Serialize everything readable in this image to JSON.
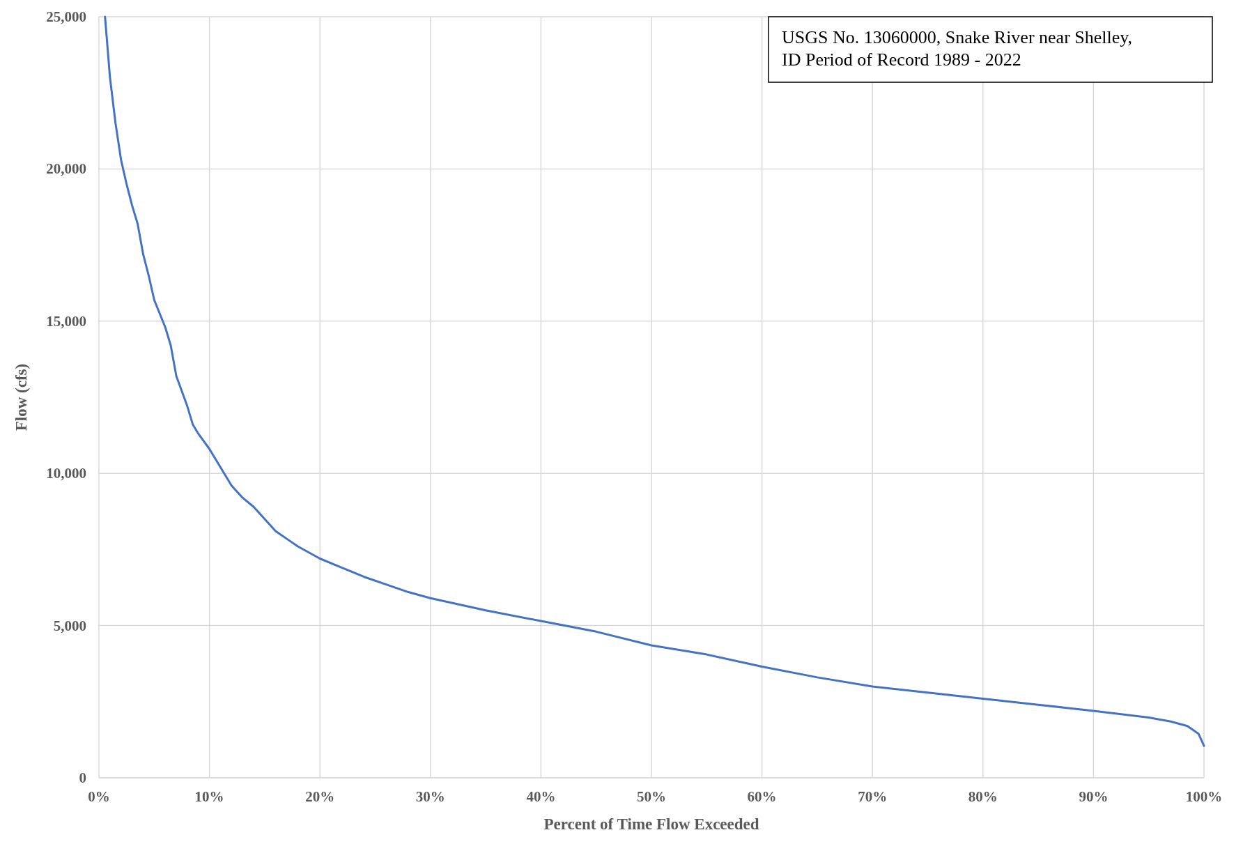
{
  "chart_data": {
    "type": "line",
    "xlabel": "Percent of Time Flow Exceeded",
    "ylabel": "Flow (cfs)",
    "annotations": [
      "USGS No. 13060000, Snake River near Shelley, ID Period of Record 1989 - 2022"
    ],
    "xlim": [
      0,
      100
    ],
    "xticks": [
      {
        "value": 0,
        "label": "0%"
      },
      {
        "value": 10,
        "label": "10%"
      },
      {
        "value": 20,
        "label": "20%"
      },
      {
        "value": 30,
        "label": "30%"
      },
      {
        "value": 40,
        "label": "40%"
      },
      {
        "value": 50,
        "label": "50%"
      },
      {
        "value": 60,
        "label": "60%"
      },
      {
        "value": 70,
        "label": "70%"
      },
      {
        "value": 80,
        "label": "80%"
      },
      {
        "value": 90,
        "label": "90%"
      },
      {
        "value": 100,
        "label": "100%"
      }
    ],
    "ylim": [
      0,
      25000
    ],
    "yticks": [
      0,
      {
        "value": 5000,
        "label": "5,000"
      },
      {
        "value": 10000,
        "label": "10,000"
      },
      {
        "value": 15000,
        "label": "15,000"
      },
      {
        "value": 20000,
        "label": "20,000"
      },
      {
        "value": 25000,
        "label": "25,000"
      }
    ],
    "grid": true,
    "marker": "none",
    "line_style": "solid",
    "series": [
      {
        "color": "#4472c4",
        "x": [
          0.55,
          1,
          1.5,
          2,
          2.5,
          3,
          3.5,
          4,
          4.5,
          5,
          6,
          6.5,
          7,
          7.5,
          8,
          8.5,
          9,
          10,
          11,
          12,
          13,
          14,
          15,
          16,
          17,
          18,
          19,
          20,
          22,
          24,
          26,
          28,
          30,
          35,
          40,
          45,
          50,
          55,
          60,
          65,
          70,
          75,
          80,
          85,
          90,
          95,
          97,
          98.5,
          99.5,
          100
        ],
        "values": [
          25000,
          23000,
          21500,
          20300,
          19500,
          18800,
          18200,
          17200,
          16500,
          15700,
          14800,
          14200,
          13200,
          12700,
          12200,
          11600,
          11300,
          10800,
          10200,
          9600,
          9200,
          8900,
          8500,
          8100,
          7850,
          7600,
          7400,
          7200,
          6900,
          6600,
          6350,
          6100,
          5900,
          5500,
          5150,
          4800,
          4350,
          4050,
          3650,
          3300,
          3000,
          2800,
          2600,
          2400,
          2200,
          1980,
          1850,
          1700,
          1450,
          1050
        ]
      }
    ]
  }
}
